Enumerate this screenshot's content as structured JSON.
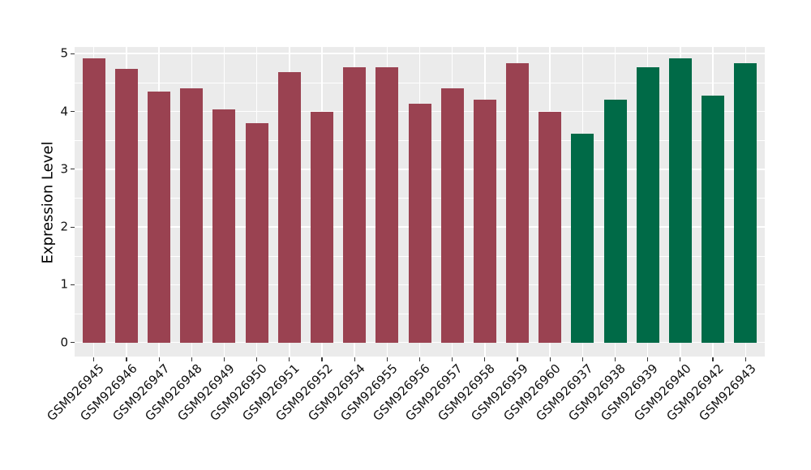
{
  "chart_data": {
    "type": "bar",
    "title": "",
    "xlabel": "",
    "ylabel": "Expression Level",
    "ylim": [
      0,
      5
    ],
    "yticks": [
      "0",
      "1",
      "2",
      "3",
      "4",
      "5"
    ],
    "grid": "on",
    "legend_position": "none",
    "panel_bg": "#EBEBEB",
    "grid_color": "#FFFFFF",
    "categories": [
      "GSM926945",
      "GSM926946",
      "GSM926947",
      "GSM926948",
      "GSM926949",
      "GSM926950",
      "GSM926951",
      "GSM926952",
      "GSM926954",
      "GSM926955",
      "GSM926956",
      "GSM926957",
      "GSM926958",
      "GSM926959",
      "GSM926960",
      "GSM926937",
      "GSM926938",
      "GSM926939",
      "GSM926940",
      "GSM926942",
      "GSM926943"
    ],
    "values": [
      4.92,
      4.74,
      4.34,
      4.4,
      4.04,
      3.8,
      4.68,
      3.99,
      4.76,
      4.76,
      4.13,
      4.4,
      4.21,
      4.84,
      4.0,
      3.62,
      4.2,
      4.76,
      4.92,
      4.27,
      4.84
    ],
    "bar_colors": [
      "#9A4251",
      "#9A4251",
      "#9A4251",
      "#9A4251",
      "#9A4251",
      "#9A4251",
      "#9A4251",
      "#9A4251",
      "#9A4251",
      "#9A4251",
      "#9A4251",
      "#9A4251",
      "#9A4251",
      "#9A4251",
      "#9A4251",
      "#006A47",
      "#006A47",
      "#006A47",
      "#006A47",
      "#006A47",
      "#006A47"
    ],
    "color_groups": [
      {
        "name": "group-1",
        "color": "#9A4251",
        "count": 15
      },
      {
        "name": "group-2",
        "color": "#006A47",
        "count": 6
      }
    ]
  }
}
